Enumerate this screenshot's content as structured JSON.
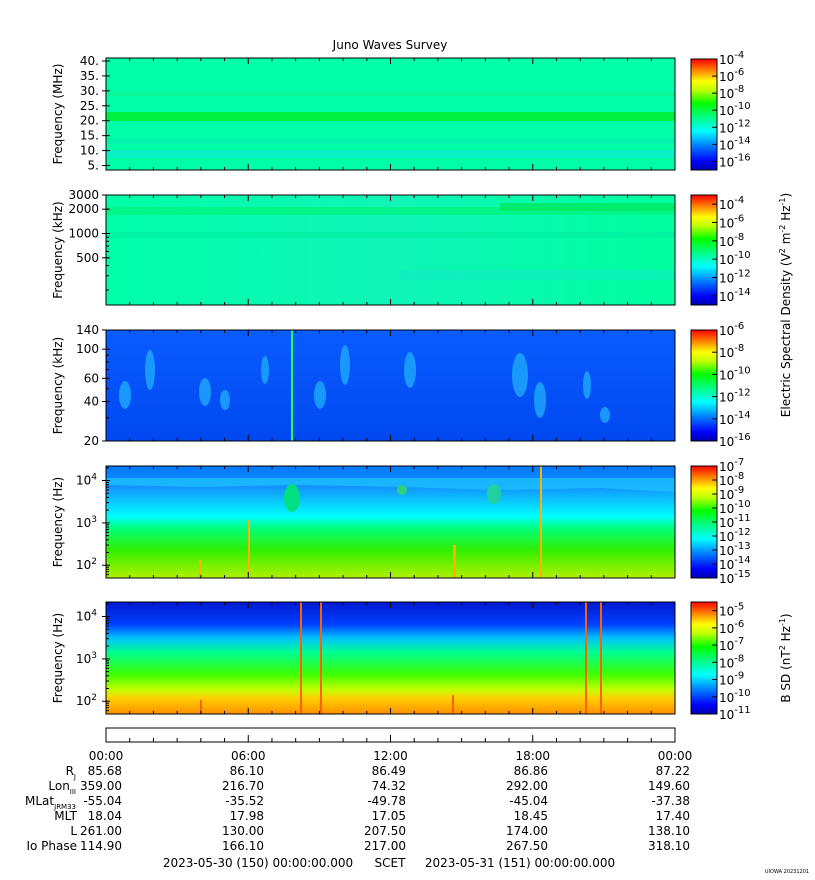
{
  "title": "Juno Waves Survey",
  "chart_data": [
    {
      "type": "heatmap",
      "ylabel": "Frequency (MHz)",
      "yscale": "linear",
      "ylim": [
        3.5,
        41
      ],
      "yticks": [
        "40.",
        "35.",
        "30.",
        "25.",
        "20.",
        "15.",
        "10.",
        "5."
      ],
      "ytick_values": [
        40,
        35,
        30,
        25,
        20,
        15,
        10,
        5
      ],
      "colorbar_ticks": [
        "-4",
        "-6",
        "-8",
        "-10",
        "-12",
        "-14",
        "-16"
      ],
      "colorbar_exponents": [
        -4,
        -6,
        -8,
        -10,
        -12,
        -14,
        -16
      ],
      "colorbar_range": [
        -17,
        -4
      ]
    },
    {
      "type": "heatmap",
      "ylabel": "Frequency (kHz)",
      "yscale": "log",
      "ylim": [
        130,
        3000
      ],
      "yticks": [
        "3000",
        "2000",
        "1000",
        "500"
      ],
      "ytick_values": [
        3000,
        2000,
        1000,
        500
      ],
      "colorbar_ticks": [
        "-4",
        "-6",
        "-8",
        "-10",
        "-12",
        "-14"
      ],
      "colorbar_exponents": [
        -4,
        -6,
        -8,
        -10,
        -12,
        -14
      ],
      "colorbar_range": [
        -15,
        -3
      ]
    },
    {
      "type": "heatmap",
      "ylabel": "Frequency (kHz)",
      "yscale": "log",
      "ylim": [
        20,
        140
      ],
      "yticks": [
        "140",
        "100",
        "60",
        "40",
        "20"
      ],
      "ytick_values": [
        140,
        100,
        60,
        40,
        20
      ],
      "colorbar_ticks": [
        "-6",
        "-8",
        "-10",
        "-12",
        "-14",
        "-16"
      ],
      "colorbar_exponents": [
        -6,
        -8,
        -10,
        -12,
        -14,
        -16
      ],
      "colorbar_range": [
        -16,
        -6
      ]
    },
    {
      "type": "heatmap",
      "ylabel": "Frequency (Hz)",
      "yscale": "log",
      "ylim": [
        50,
        22000
      ],
      "yticks": [
        "4",
        "3",
        "2"
      ],
      "ytick_values": [
        10000,
        1000,
        100
      ],
      "colorbar_ticks": [
        "-7",
        "-8",
        "-9",
        "-10",
        "-11",
        "-12",
        "-13",
        "-14",
        "-15"
      ],
      "colorbar_exponents": [
        -7,
        -8,
        -9,
        -10,
        -11,
        -12,
        -13,
        -14,
        -15
      ],
      "colorbar_range": [
        -15,
        -7
      ]
    },
    {
      "type": "heatmap",
      "ylabel": "Frequency (Hz)",
      "yscale": "log",
      "ylim": [
        50,
        22000
      ],
      "yticks": [
        "4",
        "3",
        "2"
      ],
      "ytick_values": [
        10000,
        1000,
        100
      ],
      "colorbar_ticks": [
        "-5",
        "-6",
        "-7",
        "-8",
        "-9",
        "-10",
        "-11"
      ],
      "colorbar_exponents": [
        -5,
        -6,
        -7,
        -8,
        -9,
        -10,
        -11
      ],
      "colorbar_range": [
        -11,
        -4.5
      ]
    }
  ],
  "colorbar_base": "10",
  "colorbar_label_e": "Electric Spectral Density (V",
  "colorbar_label_b": "B SD (nT",
  "x_axis": {
    "hours": [
      0,
      6,
      12,
      18,
      24
    ],
    "tick_labels": [
      "00:00",
      "06:00",
      "12:00",
      "18:00",
      "00:00"
    ]
  },
  "ephemeris": [
    {
      "label": "R",
      "sub": "J",
      "values": [
        "85.68",
        "86.10",
        "86.49",
        "86.86",
        "87.22"
      ]
    },
    {
      "label": "Lon",
      "sub": "III",
      "values": [
        "359.00",
        "216.70",
        "74.32",
        "292.00",
        "149.60"
      ]
    },
    {
      "label": "MLat",
      "sub": "JRM33",
      "values": [
        "-55.04",
        "-35.52",
        "-49.78",
        "-45.04",
        "-37.38"
      ]
    },
    {
      "label": "MLT",
      "sub": "",
      "values": [
        "18.04",
        "17.98",
        "17.05",
        "18.45",
        "17.40"
      ]
    },
    {
      "label": "L",
      "sub": "",
      "values": [
        "261.00",
        "130.00",
        "207.50",
        "174.00",
        "138.10"
      ]
    },
    {
      "label": "Io Phase",
      "sub": "",
      "values": [
        "114.90",
        "166.10",
        "217.00",
        "267.50",
        "318.10"
      ]
    }
  ],
  "footer": {
    "start": "2023-05-30 (150) 00:00:00.000",
    "scet": "SCET",
    "end": "2023-05-31 (151) 00:00:00.000"
  },
  "credit": "UIOWA 20231201",
  "colors": {
    "background": "#ffffff",
    "axis": "#000000"
  }
}
